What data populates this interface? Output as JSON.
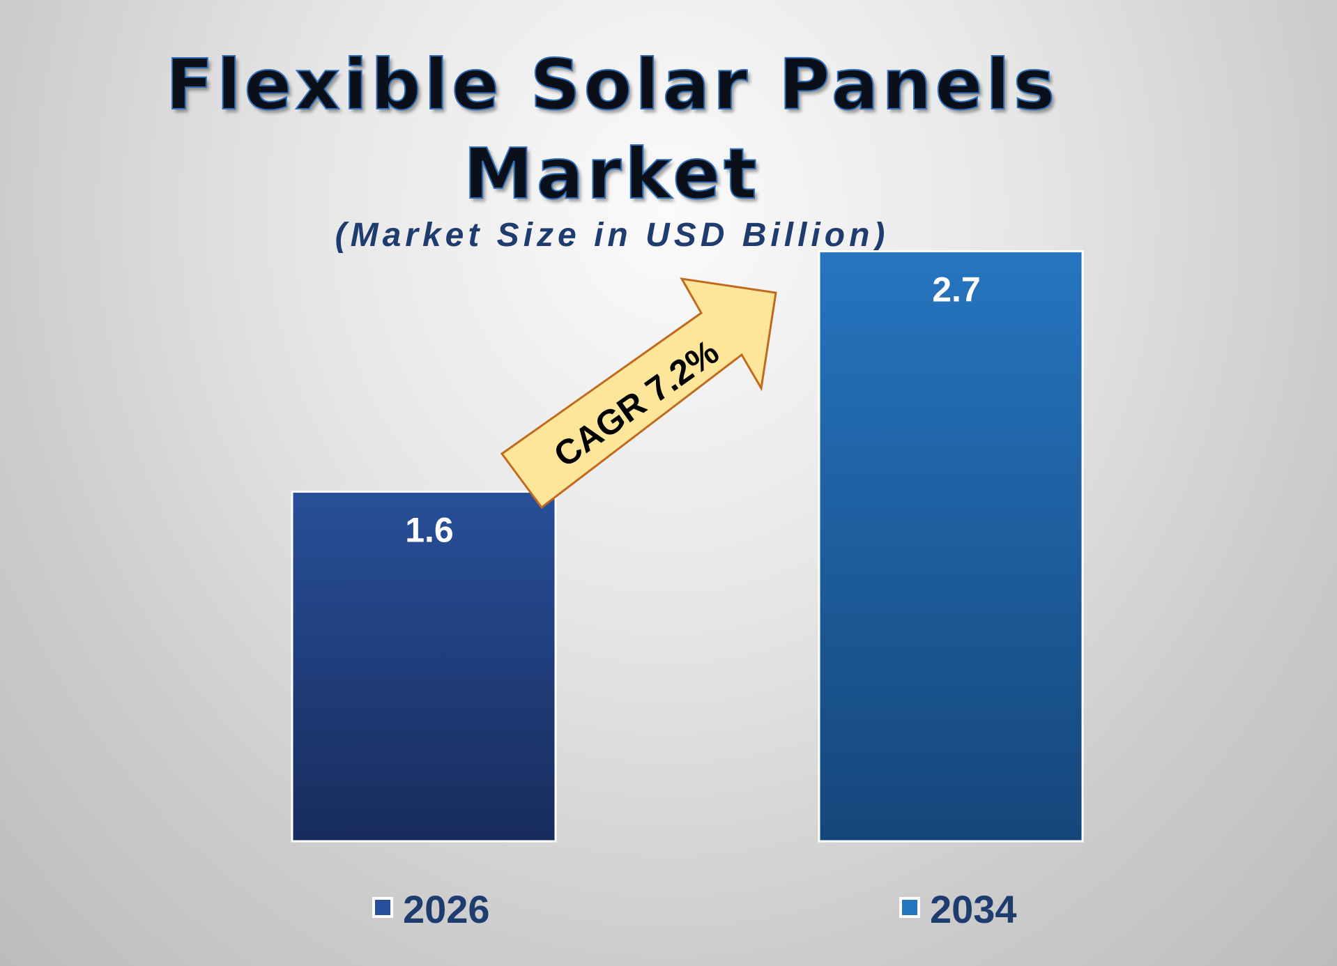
{
  "title_line1": "Flexible Solar Panels",
  "title_line2": "Market",
  "subtitle": "(Market Size in USD Billion)",
  "annotation": {
    "text": "CAGR 7.2%",
    "fill": "#fde59a",
    "stroke": "#c06a1c"
  },
  "chart_data": {
    "type": "bar",
    "categories": [
      "2026",
      "2034"
    ],
    "values": [
      1.6,
      2.7
    ],
    "data_labels": [
      "1.6",
      "2.7"
    ],
    "ylim": [
      0,
      3.85
    ],
    "grid": false,
    "legend": "bottom",
    "colors": [
      {
        "top": "#284f99",
        "bottom": "#172c5c"
      },
      {
        "top": "#2675c0",
        "bottom": "#15467a"
      }
    ]
  }
}
